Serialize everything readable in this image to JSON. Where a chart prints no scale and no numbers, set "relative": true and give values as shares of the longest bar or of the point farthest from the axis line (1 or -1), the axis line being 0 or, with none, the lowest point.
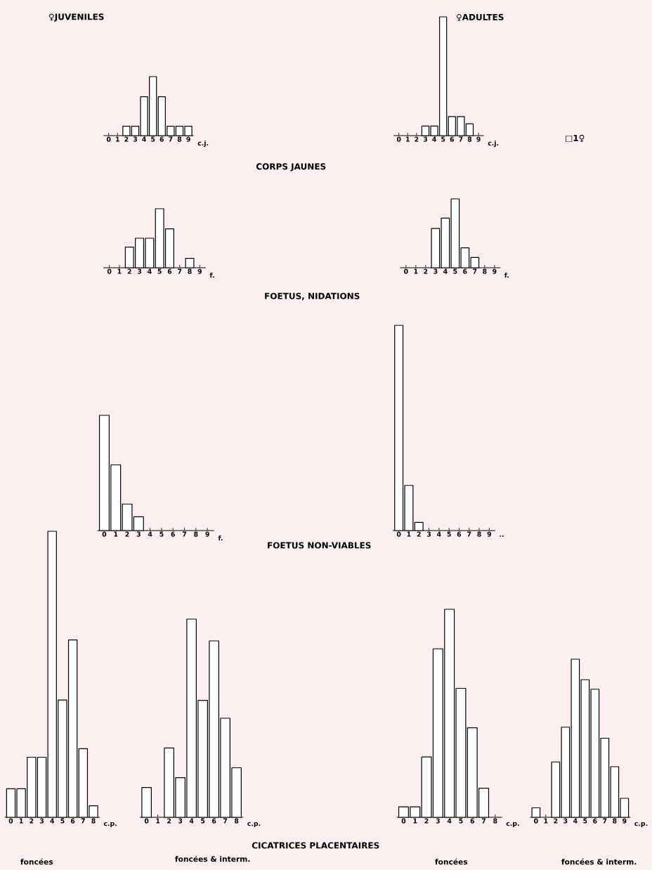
{
  "chart_data": [
    {
      "type": "bar",
      "title": "♀JUVENILES",
      "xlabel": "c.j.",
      "relative": true,
      "color": "#000000",
      "categories": [
        "0",
        "1",
        "2",
        "3",
        "4",
        "5",
        "6",
        "7",
        "8",
        "9"
      ],
      "values": [
        0,
        0,
        0.16,
        0.16,
        0.66,
        1,
        0.66,
        0.16,
        0.16,
        0.16
      ],
      "annotations": [
        "CORPS JAUNES"
      ]
    },
    {
      "type": "bar",
      "title": "♀ADULTES",
      "xlabel": "c.j.",
      "relative": true,
      "color": "#000000",
      "categories": [
        "0",
        "1",
        "2",
        "3",
        "4",
        "5",
        "6",
        "7",
        "8",
        "9"
      ],
      "values": [
        0,
        0,
        0,
        0.08,
        0.08,
        1,
        0.16,
        0.16,
        0.1,
        0
      ],
      "annotations": [
        "□1♀"
      ]
    },
    {
      "type": "bar",
      "xlabel": "f.",
      "relative": true,
      "color": "#000000",
      "categories": [
        "0",
        "1",
        "2",
        "3",
        "4",
        "5",
        "6",
        "7",
        "8",
        "9"
      ],
      "values": [
        0,
        0,
        0.35,
        0.5,
        0.5,
        1,
        0.66,
        0,
        0.16,
        0
      ],
      "annotations": [
        "FOETUS, NIDATIONS"
      ]
    },
    {
      "type": "bar",
      "xlabel": "f.",
      "relative": true,
      "color": "#000000",
      "categories": [
        "0",
        "1",
        "2",
        "3",
        "4",
        "5",
        "6",
        "7",
        "8",
        "9"
      ],
      "values": [
        0,
        0,
        0,
        0.57,
        0.72,
        1,
        0.29,
        0.15,
        0,
        0
      ]
    },
    {
      "type": "bar",
      "xlabel": "f.",
      "relative": true,
      "color": "#000000",
      "categories": [
        "0",
        "1",
        "2",
        "3",
        "4",
        "5",
        "6",
        "7",
        "8",
        "9"
      ],
      "values": [
        1,
        0.57,
        0.23,
        0.12,
        0,
        0,
        0,
        0,
        0,
        0
      ],
      "annotations": [
        "FOETUS NON-VIABLES"
      ]
    },
    {
      "type": "bar",
      "xlabel": "..",
      "relative": true,
      "color": "#000000",
      "categories": [
        "0",
        "1",
        "2",
        "3",
        "4",
        "5",
        "6",
        "7",
        "8",
        "9"
      ],
      "values": [
        1,
        0.22,
        0.04,
        0,
        0,
        0,
        0,
        0,
        0,
        0
      ]
    },
    {
      "type": "bar",
      "subtitle": "foncées",
      "xlabel": "c.p.",
      "relative": true,
      "color": "#000000",
      "categories": [
        "0",
        "1",
        "2",
        "3",
        "4",
        "5",
        "6",
        "7",
        "8"
      ],
      "values": [
        0.1,
        0.1,
        0.21,
        0.21,
        1,
        0.41,
        0.62,
        0.24,
        0.04
      ],
      "annotations": [
        "CICATRICES PLACENTAIRES"
      ]
    },
    {
      "type": "bar",
      "subtitle": "foncées & interm.",
      "xlabel": "c.p.",
      "relative": true,
      "color": "#000000",
      "categories": [
        "0",
        "1",
        "2",
        "3",
        "4",
        "5",
        "6",
        "7",
        "8"
      ],
      "values": [
        0.15,
        0,
        0.35,
        0.2,
        1,
        0.59,
        0.89,
        0.5,
        0.25
      ]
    },
    {
      "type": "bar",
      "subtitle": "foncées",
      "xlabel": "c.p.",
      "relative": true,
      "color": "#000000",
      "categories": [
        "0",
        "1",
        "2",
        "3",
        "4",
        "5",
        "6",
        "7",
        "8"
      ],
      "values": [
        0.05,
        0.05,
        0.29,
        0.81,
        1,
        0.62,
        0.43,
        0.14,
        0
      ]
    },
    {
      "type": "bar",
      "subtitle": "foncées & interm.",
      "xlabel": "c.p.",
      "relative": true,
      "color": "#000000",
      "categories": [
        "0",
        "1",
        "2",
        "3",
        "4",
        "5",
        "6",
        "7",
        "8",
        "9"
      ],
      "values": [
        0.06,
        0,
        0.35,
        0.57,
        1,
        0.87,
        0.81,
        0.5,
        0.32,
        0.12
      ]
    }
  ]
}
